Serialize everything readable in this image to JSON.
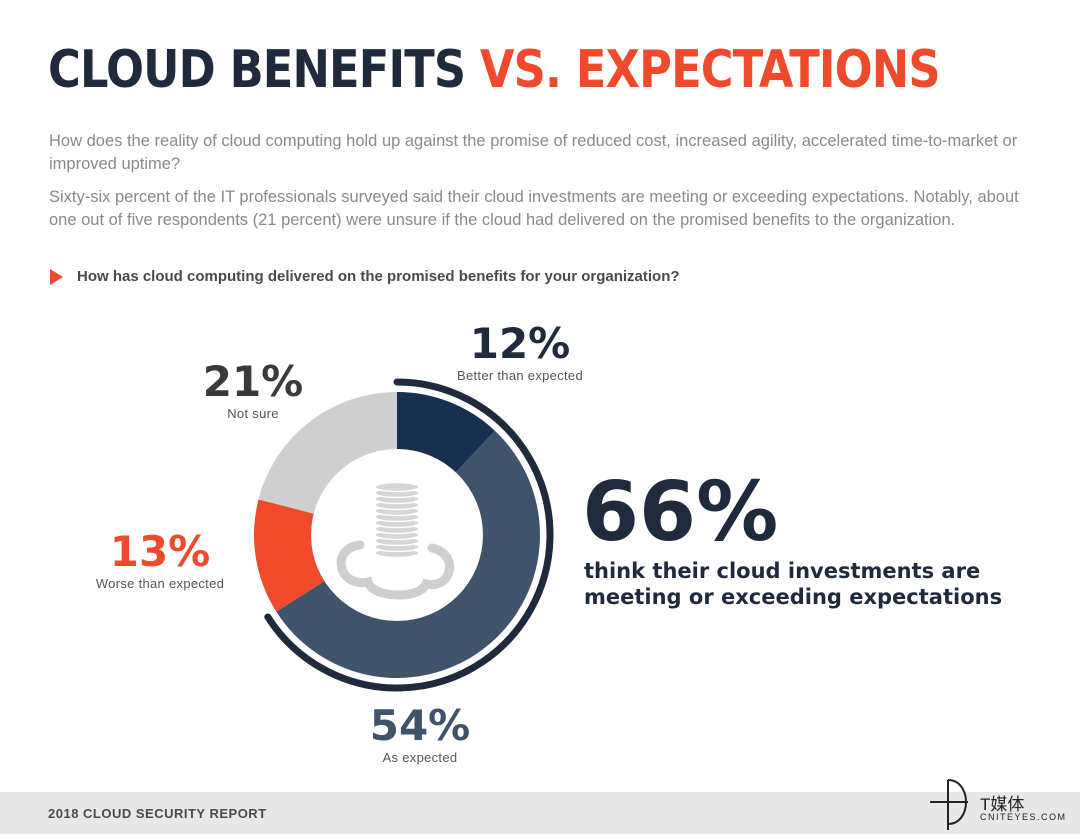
{
  "header": {
    "title_part1": "CLOUD BENEFITS",
    "title_part2": "VS. EXPECTATIONS"
  },
  "intro": {
    "paragraph1": "How does the reality of cloud computing hold up against the promise of reduced cost, increased agility, accelerated time-to-market or improved uptime?",
    "paragraph2": "Sixty-six percent of the IT professionals surveyed said their cloud investments are meeting or exceeding expectations. Notably, about one out of five respondents (21 percent) were unsure if the cloud had delivered on the promised benefits to the organization."
  },
  "question": "How has cloud computing delivered on the promised benefits for your organization?",
  "chart_data": {
    "type": "pie",
    "style": "donut",
    "categories": [
      "Better than expected",
      "As expected",
      "Worse than expected",
      "Not sure"
    ],
    "values": [
      12,
      54,
      13,
      21
    ],
    "labels": [
      "12%",
      "54%",
      "13%",
      "21%"
    ],
    "colors": [
      "#17304f",
      "#3f536b",
      "#ef4a2c",
      "#cfcfcf"
    ],
    "highlight": {
      "value": "66%",
      "text": "think their cloud investments are meeting or exceeding expectations",
      "color": "#1f2a3c"
    },
    "center_icon": "coin-stack-cloud-icon"
  },
  "colors": {
    "accent": "#ef4a2c",
    "navy": "#1f2a3c"
  },
  "footer": {
    "report": "2018 CLOUD SECURITY REPORT",
    "logo_cn": "T媒体",
    "logo_en": "CNITEYES.COM"
  }
}
